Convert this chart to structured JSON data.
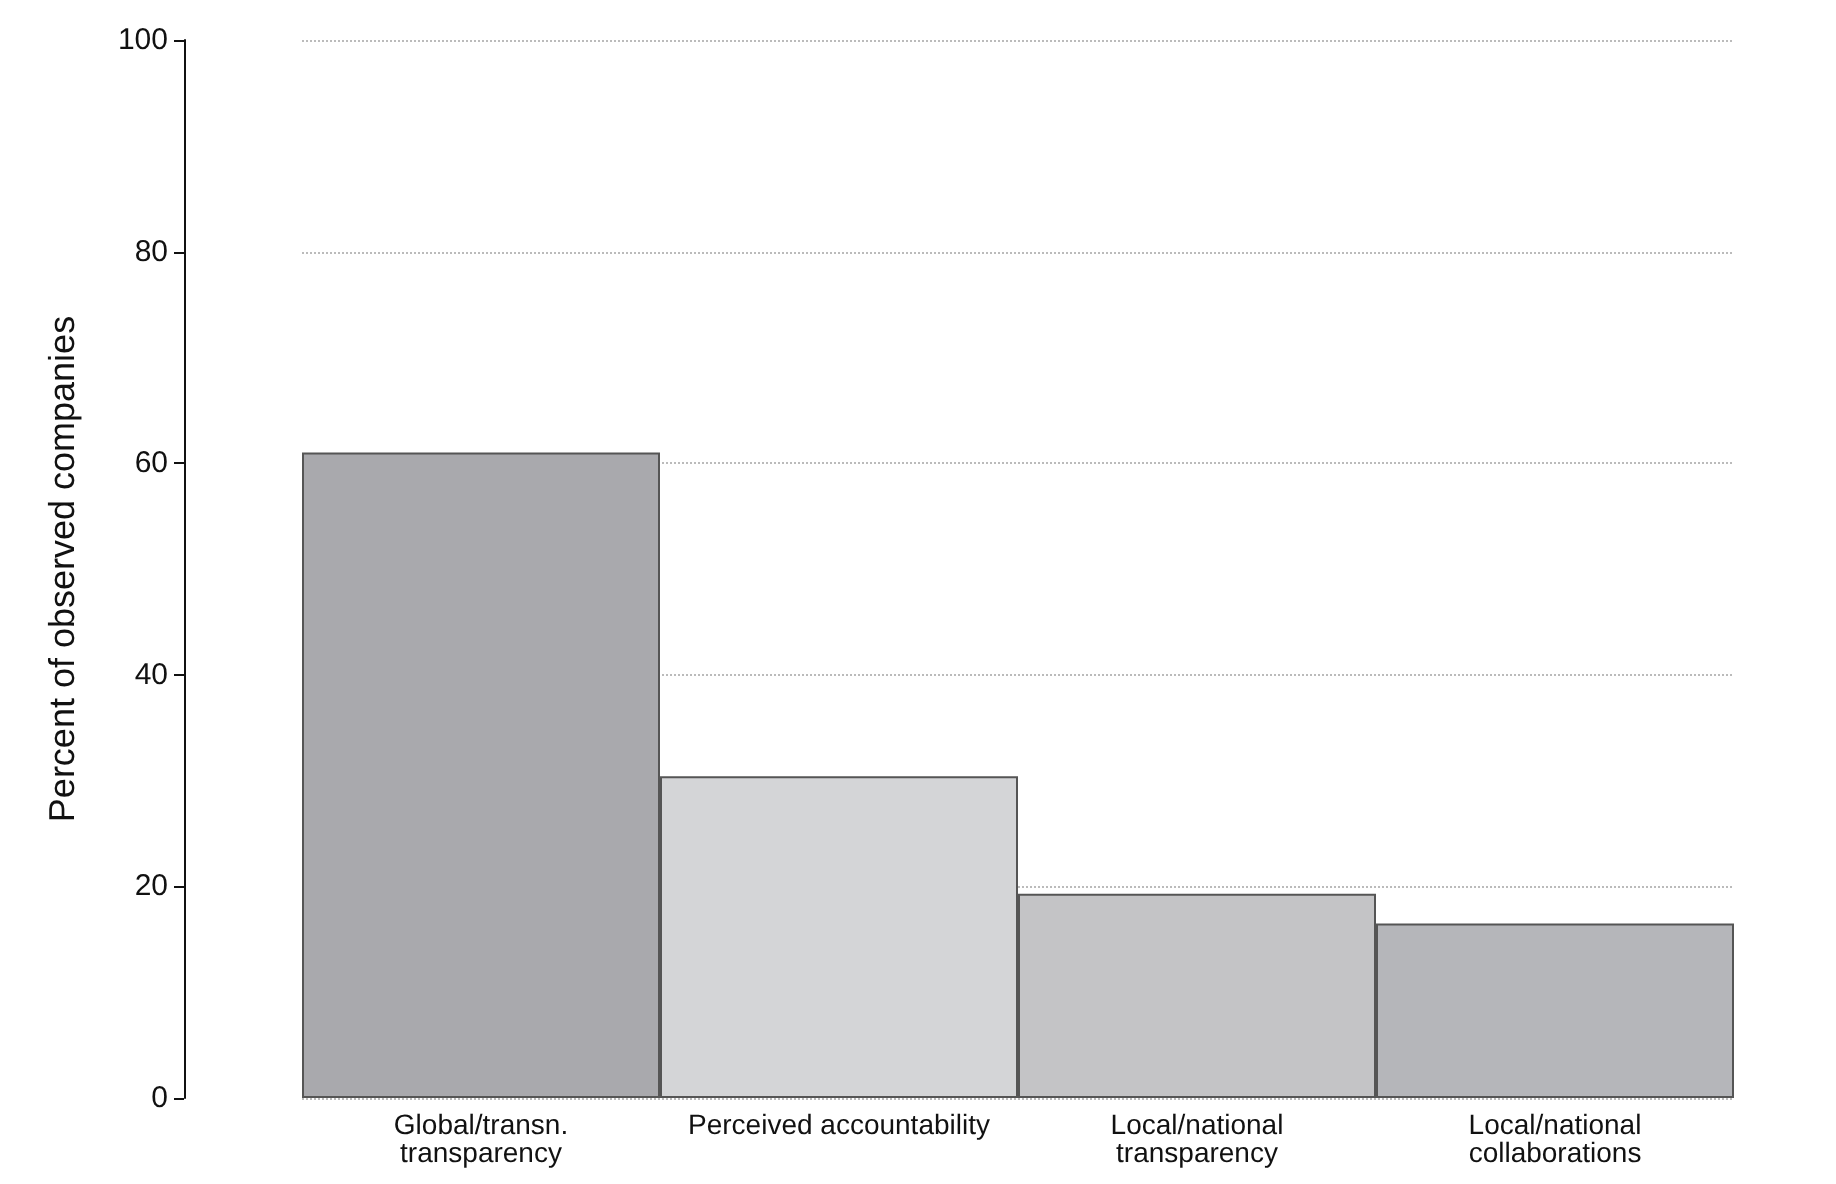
{
  "chart_data": {
    "type": "bar",
    "ylabel": "Percent of observed companies",
    "categories": [
      "Global/transn.\ntransparency",
      "Perceived accountability",
      "Local/national\ntransparency",
      "Local/national\ncollaborations"
    ],
    "values": [
      61,
      30.4,
      19.3,
      16.5
    ],
    "colors": [
      "#a9a9ad",
      "#d4d5d7",
      "#c4c4c6",
      "#b5b6ba"
    ],
    "ylim": [
      0,
      100
    ],
    "yticks": [
      0,
      20,
      40,
      60,
      80,
      100
    ],
    "grid": "y"
  }
}
